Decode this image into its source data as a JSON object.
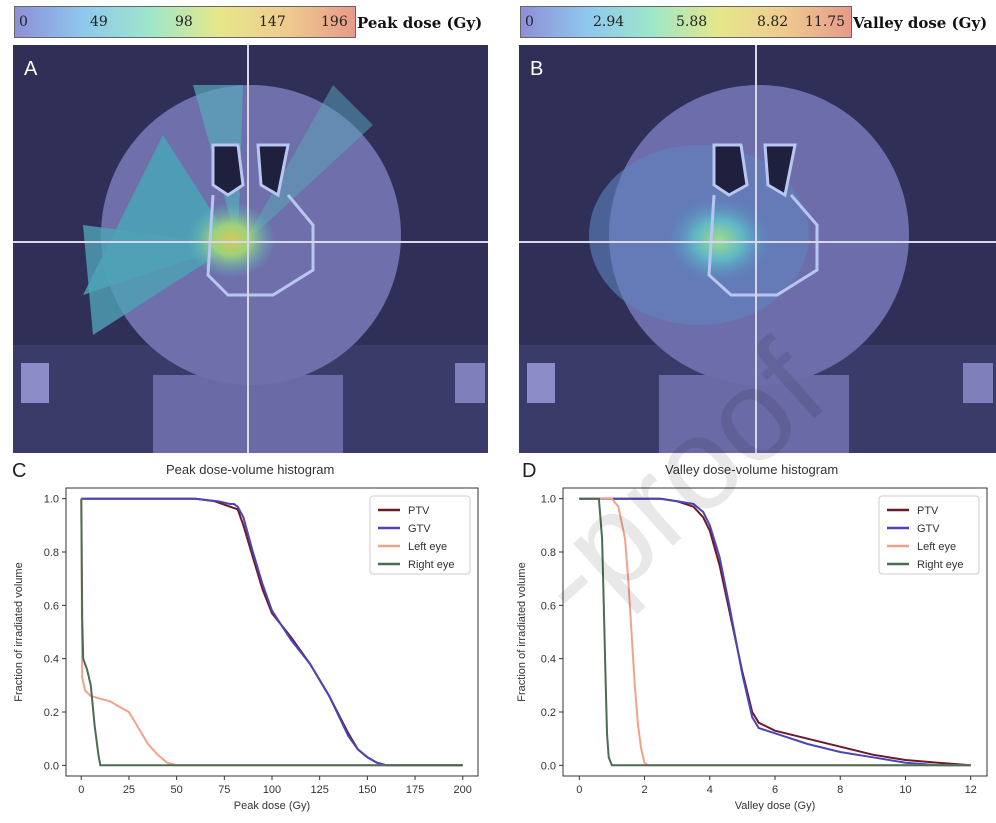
{
  "colorbars": {
    "peak": {
      "ticks": [
        "0",
        "49",
        "98",
        "147",
        "196"
      ],
      "title": "Peak dose (Gy)"
    },
    "valley": {
      "ticks": [
        "0",
        "2.94",
        "5.88",
        "8.82",
        "11.75"
      ],
      "title": "Valley dose (Gy)"
    }
  },
  "panels": {
    "A": "A",
    "B": "B",
    "C": "C",
    "D": "D"
  },
  "watermark": "-proof",
  "chart_data": [
    {
      "type": "line",
      "title": "Peak dose-volume histogram",
      "xlabel": "Peak dose (Gy)",
      "ylabel": "Fraction of irradiated volume",
      "xlim": [
        -8,
        208
      ],
      "ylim": [
        -0.04,
        1.04
      ],
      "xticks": [
        0,
        25,
        50,
        75,
        100,
        125,
        150,
        175,
        200
      ],
      "yticks": [
        0.0,
        0.2,
        0.4,
        0.6,
        0.8,
        1.0
      ],
      "legend": "top-right",
      "series": [
        {
          "name": "PTV",
          "color": "#6b1a2a",
          "x": [
            0,
            60,
            70,
            78,
            82,
            85,
            90,
            95,
            100,
            110,
            120,
            130,
            140,
            145,
            150,
            155,
            160,
            200
          ],
          "y": [
            1.0,
            1.0,
            0.99,
            0.97,
            0.96,
            0.9,
            0.78,
            0.66,
            0.57,
            0.48,
            0.38,
            0.26,
            0.12,
            0.06,
            0.03,
            0.01,
            0.0,
            0.0
          ]
        },
        {
          "name": "GTV",
          "color": "#4b45b8",
          "x": [
            0,
            60,
            72,
            78,
            80,
            82,
            85,
            90,
            95,
            100,
            110,
            120,
            130,
            140,
            145,
            150,
            155,
            160,
            200
          ],
          "y": [
            1.0,
            1.0,
            0.99,
            0.98,
            0.98,
            0.97,
            0.93,
            0.8,
            0.68,
            0.58,
            0.47,
            0.38,
            0.26,
            0.11,
            0.06,
            0.03,
            0.01,
            0.0,
            0.0
          ]
        },
        {
          "name": "Left eye",
          "color": "#f2a28c",
          "x": [
            0,
            0.5,
            2,
            5,
            10,
            15,
            20,
            25,
            30,
            35,
            40,
            45,
            50,
            200
          ],
          "y": [
            1.0,
            0.33,
            0.28,
            0.26,
            0.25,
            0.24,
            0.22,
            0.2,
            0.14,
            0.08,
            0.04,
            0.01,
            0.0,
            0.0
          ]
        },
        {
          "name": "Right eye",
          "color": "#4b6b52",
          "x": [
            0,
            0.5,
            1,
            3,
            5,
            7,
            9,
            10,
            200
          ],
          "y": [
            1.0,
            0.55,
            0.4,
            0.36,
            0.3,
            0.15,
            0.04,
            0.0,
            0.0
          ]
        }
      ]
    },
    {
      "type": "line",
      "title": "Valley dose-volume histogram",
      "xlabel": "Valley dose (Gy)",
      "ylabel": "Fraction of irradiated volume",
      "xlim": [
        -0.5,
        12.5
      ],
      "ylim": [
        -0.04,
        1.04
      ],
      "xticks": [
        0,
        2,
        4,
        6,
        8,
        10,
        12
      ],
      "yticks": [
        0.0,
        0.2,
        0.4,
        0.6,
        0.8,
        1.0
      ],
      "legend": "top-right",
      "series": [
        {
          "name": "PTV",
          "color": "#6b1a2a",
          "x": [
            0,
            2.5,
            3.0,
            3.5,
            3.8,
            4.0,
            4.3,
            4.6,
            5.0,
            5.3,
            5.5,
            6.0,
            7.0,
            8.0,
            9.0,
            10.0,
            11.0,
            12.0
          ],
          "y": [
            1.0,
            1.0,
            0.99,
            0.97,
            0.93,
            0.88,
            0.75,
            0.58,
            0.35,
            0.2,
            0.16,
            0.13,
            0.1,
            0.07,
            0.04,
            0.02,
            0.01,
            0.0
          ]
        },
        {
          "name": "GTV",
          "color": "#4b45b8",
          "x": [
            0,
            2.5,
            3.0,
            3.5,
            3.8,
            4.0,
            4.3,
            4.6,
            5.0,
            5.3,
            5.5,
            6.0,
            7.0,
            8.0,
            9.0,
            10.0,
            11.0,
            12.0
          ],
          "y": [
            1.0,
            1.0,
            0.99,
            0.98,
            0.95,
            0.9,
            0.78,
            0.6,
            0.34,
            0.18,
            0.14,
            0.12,
            0.08,
            0.05,
            0.03,
            0.01,
            0.0,
            0.0
          ]
        },
        {
          "name": "Left eye",
          "color": "#f2a28c",
          "x": [
            0,
            1.0,
            1.2,
            1.4,
            1.5,
            1.6,
            1.7,
            1.8,
            1.9,
            2.0,
            2.1,
            12.0
          ],
          "y": [
            1.0,
            1.0,
            0.97,
            0.85,
            0.7,
            0.5,
            0.3,
            0.15,
            0.06,
            0.01,
            0.0,
            0.0
          ]
        },
        {
          "name": "Right eye",
          "color": "#4b6b52",
          "x": [
            0,
            0.6,
            0.7,
            0.75,
            0.8,
            0.85,
            0.9,
            1.0,
            12.0
          ],
          "y": [
            1.0,
            1.0,
            0.85,
            0.6,
            0.35,
            0.12,
            0.03,
            0.0,
            0.0
          ]
        }
      ]
    }
  ]
}
